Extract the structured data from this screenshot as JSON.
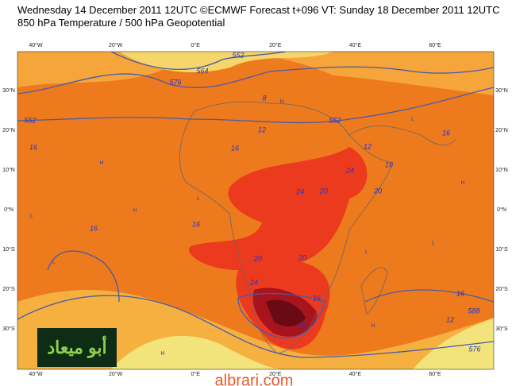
{
  "header": {
    "line1": "Wednesday 14 December 2011 12UTC ©ECMWF Forecast t+096 VT: Sunday 18 December 2011 12UTC",
    "line2": "850 hPa Temperature / 500 hPa Geopotential"
  },
  "map": {
    "lon_labels": [
      "40°W",
      "20°W",
      "0°E",
      "20°E",
      "40°E",
      "60°E"
    ],
    "lat_labels": [
      "30°N",
      "20°N",
      "10°N",
      "0°N",
      "10°S",
      "20°S",
      "30°S"
    ],
    "contour_labels": [
      "552",
      "16",
      "16",
      "16",
      "16",
      "12",
      "8",
      "552",
      "12",
      "16",
      "16",
      "20",
      "24",
      "24",
      "20",
      "24",
      "20",
      "20",
      "16",
      "16",
      "12",
      "16",
      "588",
      "576",
      "564",
      "552",
      "576"
    ],
    "pressure_marks": [
      "H",
      "H",
      "L",
      "L",
      "H",
      "L",
      "H",
      "L",
      "H",
      "L",
      "H",
      "L"
    ]
  },
  "logo": {
    "text": "أبو ميعاد"
  },
  "watermark": {
    "text": "albrari.com"
  }
}
